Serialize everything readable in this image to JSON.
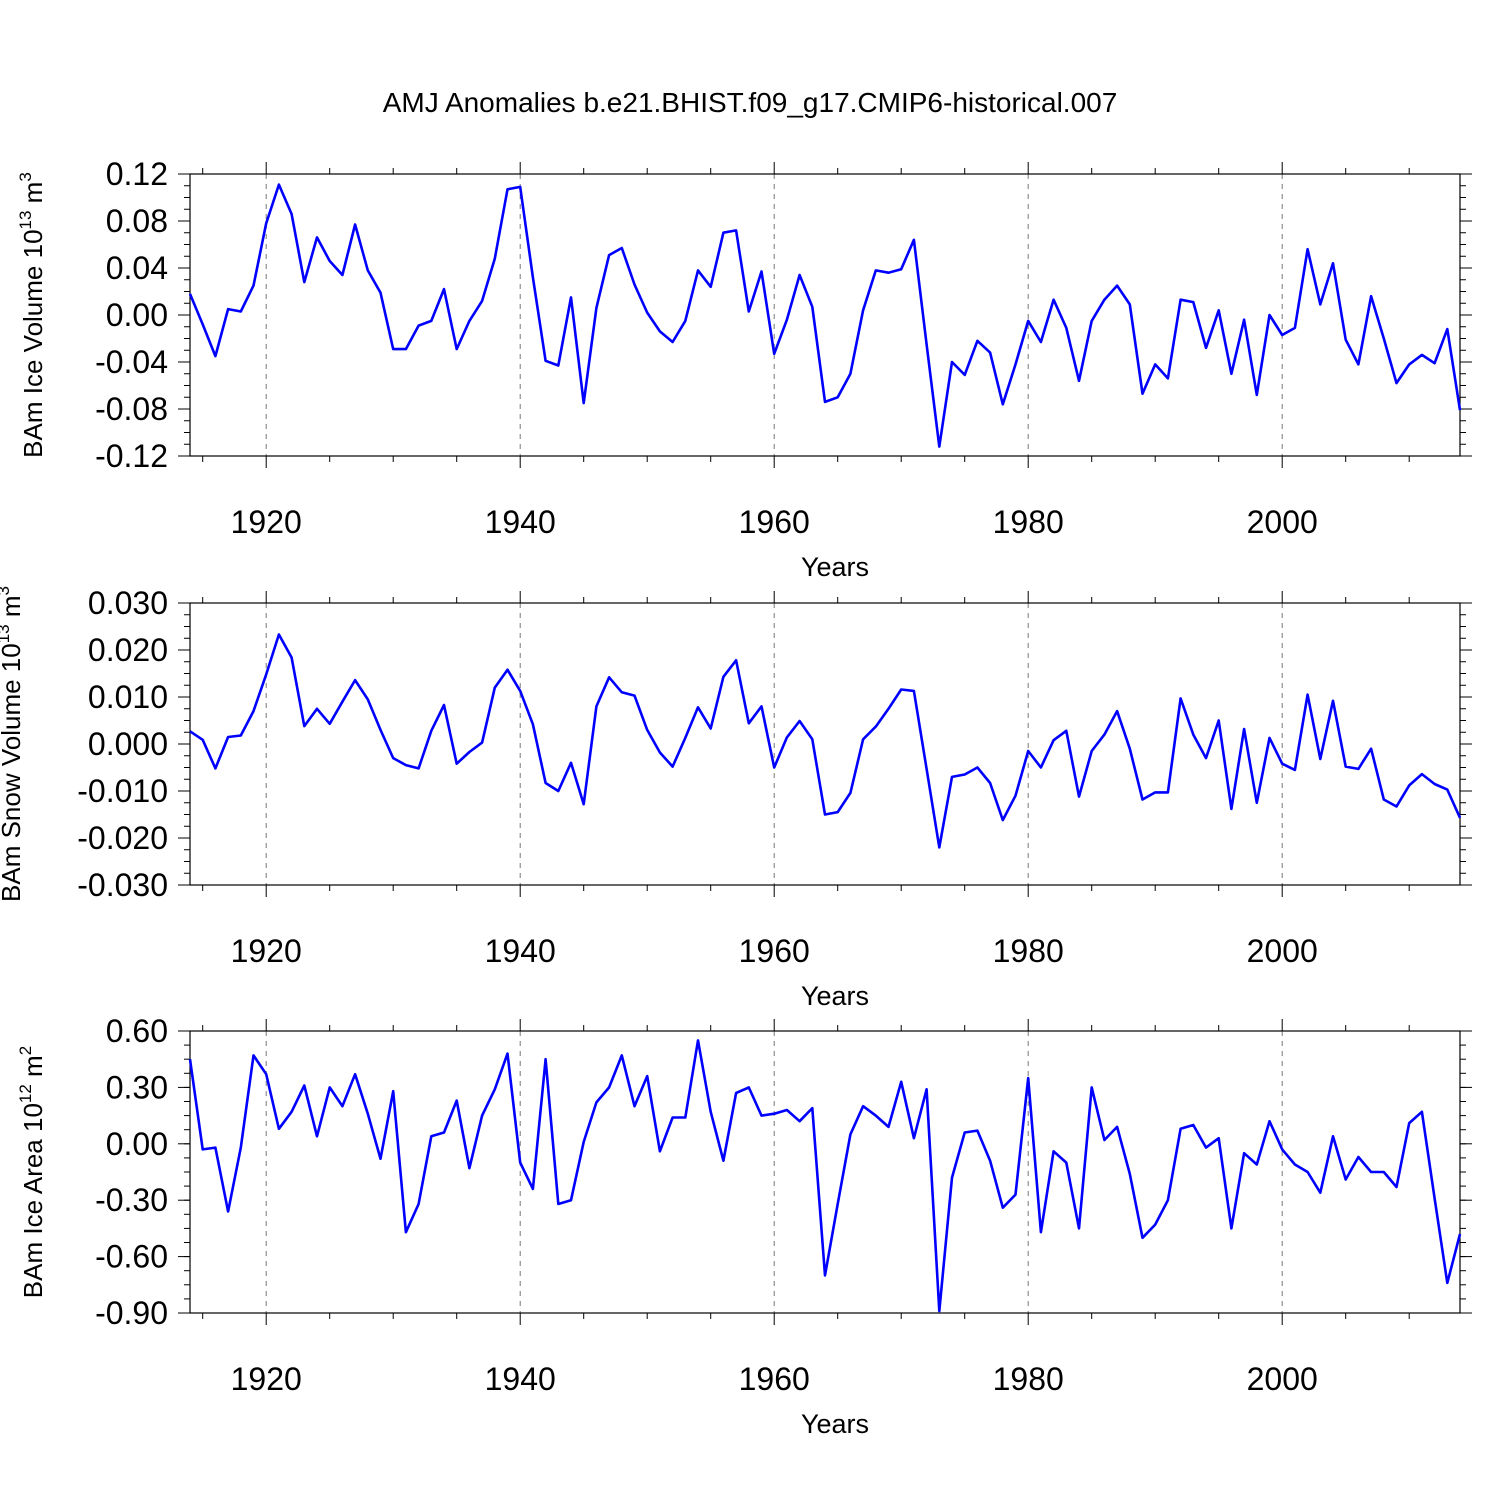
{
  "title": "AMJ Anomalies b.e21.BHIST.f09_g17.CMIP6-historical.007",
  "colors": {
    "series": "#0000ff"
  },
  "chart_data": [
    {
      "type": "line",
      "ylabel": "BAm Ice Volume 10",
      "ylabel_exp": "13",
      "ylabel_unit": " m",
      "ylabel_unit_exp": "3",
      "xlabel": "Years",
      "xlim": [
        1914,
        2014
      ],
      "ylim": [
        -0.12,
        0.12
      ],
      "yticks": [
        -0.12,
        -0.08,
        -0.04,
        0.0,
        0.04,
        0.08,
        0.12
      ],
      "yticklabels": [
        "-0.12",
        "-0.08",
        "-0.04",
        "0.00",
        "0.04",
        "0.08",
        "0.12"
      ],
      "yminor": 0.01,
      "xticks": [
        1920,
        1940,
        1960,
        1980,
        2000
      ],
      "xticklabels": [
        "1920",
        "1940",
        "1960",
        "1980",
        "2000"
      ],
      "xminor": [
        1915,
        1925,
        1930,
        1935,
        1945,
        1950,
        1955,
        1965,
        1970,
        1975,
        1985,
        1990,
        1995,
        2005,
        2010
      ],
      "x_start": 1914,
      "values": [
        0.018,
        -0.008,
        -0.035,
        0.005,
        0.003,
        0.025,
        0.078,
        0.111,
        0.086,
        0.028,
        0.066,
        0.046,
        0.034,
        0.077,
        0.038,
        0.019,
        -0.029,
        -0.029,
        -0.009,
        -0.005,
        0.022,
        -0.029,
        -0.005,
        0.012,
        0.048,
        0.107,
        0.109,
        0.032,
        -0.039,
        -0.043,
        0.015,
        -0.075,
        0.006,
        0.051,
        0.057,
        0.026,
        0.002,
        -0.014,
        -0.023,
        -0.005,
        0.038,
        0.024,
        0.07,
        0.072,
        0.003,
        0.037,
        -0.033,
        -0.004,
        0.034,
        0.007,
        -0.074,
        -0.07,
        -0.05,
        0.004,
        0.038,
        0.036,
        0.039,
        0.064,
        -0.025,
        -0.112,
        -0.04,
        -0.051,
        -0.022,
        -0.032,
        -0.076,
        -0.042,
        -0.005,
        -0.023,
        0.013,
        -0.011,
        -0.056,
        -0.005,
        0.013,
        0.025,
        0.009,
        -0.067,
        -0.042,
        -0.054,
        0.013,
        0.011,
        -0.028,
        0.004,
        -0.05,
        -0.004,
        -0.068,
        0.0,
        -0.017,
        -0.011,
        0.056,
        0.009,
        0.044,
        -0.021,
        -0.042,
        0.016,
        -0.02,
        -0.058,
        -0.042,
        -0.034,
        -0.041,
        -0.012,
        -0.081
      ]
    },
    {
      "type": "line",
      "ylabel": "BAm Snow Volume 10",
      "ylabel_exp": "13",
      "ylabel_unit": " m",
      "ylabel_unit_exp": "3",
      "xlabel": "Years",
      "xlim": [
        1914,
        2014
      ],
      "ylim": [
        -0.03,
        0.03
      ],
      "yticks": [
        -0.03,
        -0.02,
        -0.01,
        0.0,
        0.01,
        0.02,
        0.03
      ],
      "yticklabels": [
        "-0.030",
        "-0.020",
        "-0.010",
        "0.000",
        "0.010",
        "0.020",
        "0.030"
      ],
      "yminor": 0.0025,
      "xticks": [
        1920,
        1940,
        1960,
        1980,
        2000
      ],
      "xticklabels": [
        "1920",
        "1940",
        "1960",
        "1980",
        "2000"
      ],
      "xminor": [
        1915,
        1925,
        1930,
        1935,
        1945,
        1950,
        1955,
        1965,
        1970,
        1975,
        1985,
        1990,
        1995,
        2005,
        2010
      ],
      "x_start": 1914,
      "values": [
        0.0027,
        0.0009,
        -0.0052,
        0.0015,
        0.0018,
        0.007,
        0.0148,
        0.0233,
        0.0184,
        0.0038,
        0.0075,
        0.0043,
        0.009,
        0.0136,
        0.0095,
        0.003,
        -0.003,
        -0.0045,
        -0.0052,
        0.0028,
        0.0083,
        -0.0042,
        -0.0017,
        0.0003,
        0.012,
        0.0158,
        0.0113,
        0.0042,
        -0.0083,
        -0.01,
        -0.004,
        -0.0128,
        0.008,
        0.0142,
        0.011,
        0.0103,
        0.003,
        -0.0018,
        -0.0048,
        0.0013,
        0.0078,
        0.0033,
        0.0143,
        0.0178,
        0.0044,
        0.008,
        -0.005,
        0.0014,
        0.0049,
        0.001,
        -0.015,
        -0.0145,
        -0.0104,
        0.001,
        0.0037,
        0.0075,
        0.0116,
        0.0113,
        -0.0053,
        -0.022,
        -0.007,
        -0.0065,
        -0.005,
        -0.0083,
        -0.0162,
        -0.011,
        -0.0015,
        -0.005,
        0.0008,
        0.0028,
        -0.0112,
        -0.0015,
        0.002,
        0.007,
        -0.001,
        -0.0118,
        -0.0103,
        -0.0103,
        0.0097,
        0.002,
        -0.003,
        0.005,
        -0.0138,
        0.0032,
        -0.0125,
        0.0013,
        -0.0042,
        -0.0055,
        0.0105,
        -0.0032,
        0.0092,
        -0.0048,
        -0.0053,
        -0.001,
        -0.0118,
        -0.0133,
        -0.0088,
        -0.0064,
        -0.0085,
        -0.0097,
        -0.0157
      ]
    },
    {
      "type": "line",
      "ylabel": "BAm Ice Area 10",
      "ylabel_exp": "12",
      "ylabel_unit": " m",
      "ylabel_unit_exp": "2",
      "xlabel": "Years",
      "xlim": [
        1914,
        2014
      ],
      "ylim": [
        -0.9,
        0.6
      ],
      "yticks": [
        -0.9,
        -0.6,
        -0.3,
        0.0,
        0.3,
        0.6
      ],
      "yticklabels": [
        "-0.90",
        "-0.60",
        "-0.30",
        "0.00",
        "0.30",
        "0.60"
      ],
      "yminor": 0.075,
      "xticks": [
        1920,
        1940,
        1960,
        1980,
        2000
      ],
      "xticklabels": [
        "1920",
        "1940",
        "1960",
        "1980",
        "2000"
      ],
      "xminor": [
        1915,
        1925,
        1930,
        1935,
        1945,
        1950,
        1955,
        1965,
        1970,
        1975,
        1985,
        1990,
        1995,
        2005,
        2010
      ],
      "x_start": 1914,
      "values": [
        0.45,
        -0.03,
        -0.02,
        -0.36,
        -0.02,
        0.47,
        0.37,
        0.08,
        0.17,
        0.31,
        0.04,
        0.3,
        0.2,
        0.37,
        0.16,
        -0.08,
        0.28,
        -0.47,
        -0.32,
        0.04,
        0.06,
        0.23,
        -0.13,
        0.15,
        0.29,
        0.48,
        -0.1,
        -0.24,
        0.45,
        -0.32,
        -0.3,
        0.01,
        0.22,
        0.3,
        0.47,
        0.2,
        0.36,
        -0.04,
        0.14,
        0.14,
        0.55,
        0.17,
        -0.09,
        0.27,
        0.3,
        0.15,
        0.16,
        0.18,
        0.12,
        0.19,
        -0.7,
        -0.32,
        0.05,
        0.2,
        0.15,
        0.09,
        0.33,
        0.03,
        0.29,
        -0.89,
        -0.18,
        0.06,
        0.07,
        -0.09,
        -0.34,
        -0.27,
        0.35,
        -0.47,
        -0.04,
        -0.1,
        -0.45,
        0.3,
        0.02,
        0.09,
        -0.16,
        -0.5,
        -0.43,
        -0.3,
        0.08,
        0.1,
        -0.02,
        0.03,
        -0.45,
        -0.05,
        -0.11,
        0.12,
        -0.03,
        -0.11,
        -0.15,
        -0.26,
        0.04,
        -0.19,
        -0.07,
        -0.15,
        -0.15,
        -0.23,
        0.11,
        0.17,
        -0.29,
        -0.74,
        -0.48
      ]
    }
  ]
}
